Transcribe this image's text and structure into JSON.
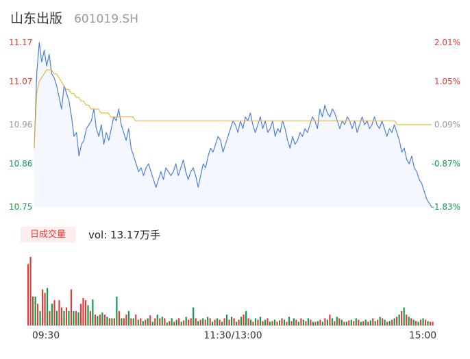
{
  "header": {
    "stock_name": "山东出版",
    "stock_code": "601019.SH"
  },
  "volume_panel": {
    "mode_label": "日成交量",
    "vol_label": "vol: 13.17万手"
  },
  "colors": {
    "up": "#e53935",
    "down": "#0a9e4c",
    "price_line": "#4a7fe0",
    "avg_line": "#f0b43c",
    "area_fill": "#f4f7fd",
    "neutral": "#999999"
  },
  "chart_data": [
    {
      "type": "line",
      "series": [
        {
          "values": [
            10.9,
            11.09,
            11.17,
            11.12,
            11.15,
            11.11,
            11.14,
            11.09,
            11.08,
            11.06,
            11.03,
            11.0,
            11.06,
            11.04,
            11.02,
            10.98,
            10.93,
            10.94,
            10.88,
            10.91,
            10.92,
            10.95,
            10.96,
            10.97,
            11.0,
            10.95,
            10.93,
            10.96,
            10.91,
            10.94,
            10.92,
            10.95,
            10.98,
            10.97,
            11.0,
            10.96,
            10.94,
            10.92,
            10.95,
            10.9,
            10.88,
            10.86,
            10.84,
            10.85,
            10.83,
            10.85,
            10.86,
            10.84,
            10.82,
            10.8,
            10.82,
            10.84,
            10.82,
            10.85,
            10.84,
            10.83,
            10.84,
            10.86,
            10.83,
            10.85,
            10.87,
            10.84,
            10.82,
            10.84,
            10.85,
            10.83,
            10.8,
            10.83,
            10.86,
            10.85,
            10.88,
            10.9,
            10.89,
            10.91,
            10.93,
            10.92,
            10.89,
            10.91,
            10.93,
            10.95,
            10.97,
            10.96,
            10.94,
            10.97,
            10.95,
            10.98,
            10.97,
            10.99,
            10.96,
            10.94,
            10.96,
            10.98,
            10.95,
            10.97,
            10.94,
            10.95,
            10.97,
            10.93,
            10.95,
            10.94,
            10.97,
            10.95,
            10.92,
            10.9,
            10.93,
            10.91,
            10.92,
            10.94,
            10.93,
            10.95,
            10.94,
            10.96,
            10.98,
            10.97,
            10.95,
            11.0,
            10.98,
            11.01,
            10.99,
            10.98,
            11.0,
            10.99,
            10.97,
            10.95,
            10.97,
            10.96,
            10.98,
            10.97,
            10.95,
            10.97,
            10.94,
            10.96,
            10.98,
            10.96,
            10.97,
            10.95,
            10.96,
            10.98,
            10.96,
            10.95,
            10.97,
            10.95,
            10.93,
            10.95,
            10.94,
            10.96,
            10.94,
            10.92,
            10.89,
            10.9,
            10.87,
            10.86,
            10.88,
            10.85,
            10.84,
            10.82,
            10.81,
            10.79,
            10.77,
            10.76,
            10.75
          ]
        },
        {
          "values": [
            10.9,
            11.04,
            11.07,
            11.08,
            11.09,
            11.1,
            11.1,
            11.1,
            11.09,
            11.09,
            11.08,
            11.07,
            11.06,
            11.05,
            11.05,
            11.04,
            11.04,
            11.03,
            11.03,
            11.02,
            11.02,
            11.01,
            11.01,
            11.0,
            11.0,
            11.0,
            11.0,
            10.99,
            10.99,
            10.99,
            10.99,
            10.98,
            10.98,
            10.98,
            10.98,
            10.98,
            10.98,
            10.98,
            10.98,
            10.98,
            10.98,
            10.97,
            10.97,
            10.97,
            10.97,
            10.97,
            10.97,
            10.97,
            10.97,
            10.97,
            10.97,
            10.97,
            10.97,
            10.97,
            10.97,
            10.97,
            10.97,
            10.97,
            10.97,
            10.97,
            10.97,
            10.97,
            10.97,
            10.97,
            10.97,
            10.97,
            10.97,
            10.97,
            10.97,
            10.97,
            10.97,
            10.97,
            10.97,
            10.97,
            10.97,
            10.97,
            10.97,
            10.97,
            10.97,
            10.97,
            10.97,
            10.97,
            10.97,
            10.97,
            10.97,
            10.97,
            10.97,
            10.97,
            10.97,
            10.97,
            10.97,
            10.97,
            10.97,
            10.97,
            10.97,
            10.97,
            10.97,
            10.97,
            10.97,
            10.97,
            10.97,
            10.97,
            10.97,
            10.97,
            10.97,
            10.97,
            10.97,
            10.97,
            10.97,
            10.97,
            10.97,
            10.97,
            10.97,
            10.97,
            10.97,
            10.97,
            10.97,
            10.97,
            10.97,
            10.97,
            10.97,
            10.97,
            10.97,
            10.97,
            10.97,
            10.97,
            10.97,
            10.97,
            10.97,
            10.97,
            10.97,
            10.97,
            10.97,
            10.97,
            10.97,
            10.97,
            10.97,
            10.97,
            10.97,
            10.97,
            10.97,
            10.97,
            10.97,
            10.97,
            10.97,
            10.97,
            10.97,
            10.96,
            10.96,
            10.96,
            10.96,
            10.96,
            10.96,
            10.96,
            10.96,
            10.96,
            10.96,
            10.96,
            10.96,
            10.96,
            10.96,
            10.96
          ]
        }
      ],
      "ylim": [
        10.75,
        11.17
      ],
      "y_ticks": [
        "11.17",
        "11.07",
        "10.96",
        "10.86",
        "10.75"
      ],
      "y_ticks_right": [
        "2.01%",
        "1.05%",
        "0.09%",
        "-0.87%",
        "-1.83%"
      ],
      "grid": false
    },
    {
      "type": "bar",
      "x_ticks": [
        "09:30",
        "11:30/13:00",
        "15:00"
      ],
      "values": [
        85,
        95,
        40,
        40,
        30,
        20,
        50,
        45,
        52,
        20,
        30,
        35,
        20,
        35,
        25,
        20,
        25,
        20,
        50,
        20,
        20,
        18,
        30,
        38,
        35,
        28,
        20,
        36,
        15,
        13,
        15,
        18,
        15,
        12,
        10,
        10,
        10,
        40,
        20,
        10,
        10,
        15,
        20,
        10,
        10,
        15,
        8,
        10,
        6,
        8,
        10,
        14,
        5,
        10,
        15,
        10,
        12,
        10,
        4,
        6,
        10,
        5,
        8,
        10,
        5,
        7,
        12,
        8,
        10,
        25,
        10,
        6,
        8,
        10,
        8,
        12,
        10,
        5,
        8,
        10,
        8,
        5,
        10,
        15,
        8,
        12,
        10,
        5,
        8,
        12,
        15,
        20,
        10,
        8,
        5,
        10,
        8,
        12,
        6,
        8,
        10,
        5,
        6,
        8,
        5,
        7,
        10,
        8,
        5,
        12,
        6,
        10,
        8,
        5,
        10,
        8,
        6,
        10,
        8,
        5,
        5,
        6,
        8,
        5,
        10,
        8,
        15,
        10,
        6,
        12,
        10,
        8,
        5,
        5,
        7,
        8,
        6,
        10,
        8,
        5,
        6,
        8,
        5,
        7,
        10,
        6,
        8,
        12,
        10,
        8,
        5,
        6,
        8,
        10,
        12,
        15,
        20,
        25,
        15,
        12,
        10,
        8,
        6,
        5,
        8,
        10,
        8,
        6,
        5,
        5
      ],
      "up": [
        1,
        1,
        1,
        0,
        1,
        0,
        1,
        1,
        0,
        1,
        0,
        1,
        0,
        1,
        1,
        0,
        1,
        0,
        1,
        0,
        1,
        0,
        1,
        1,
        1,
        0,
        1,
        0,
        1,
        0,
        1,
        0,
        1,
        0,
        1,
        0,
        1,
        0,
        1,
        0,
        1,
        1,
        0,
        1,
        0,
        1,
        0,
        1,
        0,
        1,
        0,
        1,
        0,
        1,
        0,
        1,
        0,
        1,
        0,
        1,
        0,
        1,
        0,
        1,
        0,
        1,
        0,
        1,
        1,
        0,
        1,
        0,
        1,
        0,
        1,
        0,
        1,
        0,
        1,
        0,
        1,
        0,
        1,
        0,
        1,
        0,
        1,
        0,
        1,
        0,
        1,
        0,
        1,
        0,
        1,
        0,
        1,
        0,
        1,
        0,
        1,
        0,
        1,
        0,
        1,
        0,
        1,
        0,
        1,
        0,
        1,
        0,
        1,
        0,
        1,
        0,
        1,
        0,
        1,
        0,
        1,
        0,
        1,
        0,
        1,
        0,
        1,
        0,
        1,
        0,
        1,
        0,
        1,
        0,
        1,
        0,
        1,
        0,
        1,
        0,
        1,
        0,
        1,
        0,
        1,
        0,
        1,
        0,
        1,
        0,
        1,
        0,
        1,
        0,
        1,
        0,
        1,
        0,
        1,
        0,
        1,
        0,
        1,
        0,
        1,
        0,
        1,
        0,
        1,
        1
      ]
    }
  ]
}
